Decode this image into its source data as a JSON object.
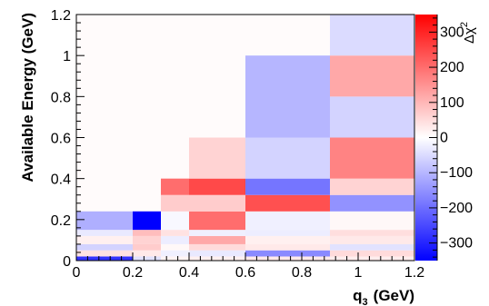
{
  "chart_data": {
    "type": "heatmap",
    "xlabel": "q",
    "xlabel_sub": "3",
    "xlabel_unit": "(GeV)",
    "ylabel": "Available Energy (GeV)",
    "zlabel": "Δχ",
    "zlabel_sup": "2",
    "xlim": [
      0,
      1.2
    ],
    "ylim": [
      0,
      1.2
    ],
    "zlim": [
      -350,
      350
    ],
    "x_ticks": [
      "0",
      "0.2",
      "0.4",
      "0.6",
      "0.8",
      "1",
      "1.2"
    ],
    "y_ticks": [
      "0",
      "0.2",
      "0.4",
      "0.6",
      "0.8",
      "1",
      "1.2"
    ],
    "z_ticks": [
      "−300",
      "−200",
      "−100",
      "0",
      "100",
      "200",
      "300"
    ],
    "colors": {
      "low": "#0000ff",
      "mid": "#ffffff",
      "high": "#ff0000",
      "empty": "#fffbfb"
    },
    "bins": [
      {
        "x": [
          0,
          0.2
        ],
        "y": [
          0,
          0.02
        ],
        "z": -280
      },
      {
        "x": [
          0,
          0.2
        ],
        "y": [
          0.02,
          0.05
        ],
        "z": 40
      },
      {
        "x": [
          0,
          0.2
        ],
        "y": [
          0.05,
          0.08
        ],
        "z": -60
      },
      {
        "x": [
          0,
          0.2
        ],
        "y": [
          0.08,
          0.12
        ],
        "z": 20
      },
      {
        "x": [
          0,
          0.2
        ],
        "y": [
          0.12,
          0.15
        ],
        "z": -30
      },
      {
        "x": [
          0,
          0.2
        ],
        "y": [
          0.15,
          0.24
        ],
        "z": -110
      },
      {
        "x": [
          0.2,
          0.3
        ],
        "y": [
          0,
          0.02
        ],
        "z": -40
      },
      {
        "x": [
          0.2,
          0.3
        ],
        "y": [
          0.02,
          0.05
        ],
        "z": 30
      },
      {
        "x": [
          0.2,
          0.3
        ],
        "y": [
          0.05,
          0.08
        ],
        "z": 70
      },
      {
        "x": [
          0.2,
          0.3
        ],
        "y": [
          0.08,
          0.12
        ],
        "z": 60
      },
      {
        "x": [
          0.2,
          0.3
        ],
        "y": [
          0.12,
          0.15
        ],
        "z": 90
      },
      {
        "x": [
          0.2,
          0.3
        ],
        "y": [
          0.15,
          0.24
        ],
        "z": -350
      },
      {
        "x": [
          0.3,
          0.4
        ],
        "y": [
          0,
          0.02
        ],
        "z": 15
      },
      {
        "x": [
          0.3,
          0.4
        ],
        "y": [
          0.02,
          0.05
        ],
        "z": -20
      },
      {
        "x": [
          0.3,
          0.4
        ],
        "y": [
          0.05,
          0.08
        ],
        "z": 10
      },
      {
        "x": [
          0.3,
          0.4
        ],
        "y": [
          0.08,
          0.12
        ],
        "z": -25
      },
      {
        "x": [
          0.3,
          0.4
        ],
        "y": [
          0.12,
          0.15
        ],
        "z": 40
      },
      {
        "x": [
          0.3,
          0.4
        ],
        "y": [
          0.15,
          0.24
        ],
        "z": -10
      },
      {
        "x": [
          0.3,
          0.4
        ],
        "y": [
          0.24,
          0.32
        ],
        "z": 70
      },
      {
        "x": [
          0.3,
          0.4
        ],
        "y": [
          0.32,
          0.4
        ],
        "z": 200
      },
      {
        "x": [
          0.4,
          0.6
        ],
        "y": [
          0,
          0.02
        ],
        "z": 20
      },
      {
        "x": [
          0.4,
          0.6
        ],
        "y": [
          0.02,
          0.05
        ],
        "z": -30
      },
      {
        "x": [
          0.4,
          0.6
        ],
        "y": [
          0.05,
          0.08
        ],
        "z": 50
      },
      {
        "x": [
          0.4,
          0.6
        ],
        "y": [
          0.08,
          0.12
        ],
        "z": 120
      },
      {
        "x": [
          0.4,
          0.6
        ],
        "y": [
          0.12,
          0.15
        ],
        "z": -20
      },
      {
        "x": [
          0.4,
          0.6
        ],
        "y": [
          0.15,
          0.24
        ],
        "z": 200
      },
      {
        "x": [
          0.4,
          0.6
        ],
        "y": [
          0.24,
          0.32
        ],
        "z": 70
      },
      {
        "x": [
          0.4,
          0.6
        ],
        "y": [
          0.32,
          0.4
        ],
        "z": 250
      },
      {
        "x": [
          0.4,
          0.6
        ],
        "y": [
          0.4,
          0.6
        ],
        "z": 60
      },
      {
        "x": [
          0.6,
          0.9
        ],
        "y": [
          0,
          0.02
        ],
        "z": 30
      },
      {
        "x": [
          0.6,
          0.9
        ],
        "y": [
          0.02,
          0.05
        ],
        "z": -160
      },
      {
        "x": [
          0.6,
          0.9
        ],
        "y": [
          0.05,
          0.08
        ],
        "z": 30
      },
      {
        "x": [
          0.6,
          0.9
        ],
        "y": [
          0.08,
          0.12
        ],
        "z": 20
      },
      {
        "x": [
          0.6,
          0.9
        ],
        "y": [
          0.12,
          0.15
        ],
        "z": -25
      },
      {
        "x": [
          0.6,
          0.9
        ],
        "y": [
          0.15,
          0.24
        ],
        "z": -20
      },
      {
        "x": [
          0.6,
          0.9
        ],
        "y": [
          0.24,
          0.32
        ],
        "z": 240
      },
      {
        "x": [
          0.6,
          0.9
        ],
        "y": [
          0.32,
          0.4
        ],
        "z": -190
      },
      {
        "x": [
          0.6,
          0.9
        ],
        "y": [
          0.4,
          0.6
        ],
        "z": -60
      },
      {
        "x": [
          0.6,
          0.9
        ],
        "y": [
          0.6,
          1.0
        ],
        "z": -100
      },
      {
        "x": [
          0.9,
          1.2
        ],
        "y": [
          0,
          0.02
        ],
        "z": 25
      },
      {
        "x": [
          0.9,
          1.2
        ],
        "y": [
          0.02,
          0.05
        ],
        "z": 50
      },
      {
        "x": [
          0.9,
          1.2
        ],
        "y": [
          0.05,
          0.08
        ],
        "z": -40
      },
      {
        "x": [
          0.9,
          1.2
        ],
        "y": [
          0.08,
          0.12
        ],
        "z": 30
      },
      {
        "x": [
          0.9,
          1.2
        ],
        "y": [
          0.12,
          0.15
        ],
        "z": 45
      },
      {
        "x": [
          0.9,
          1.2
        ],
        "y": [
          0.15,
          0.24
        ],
        "z": 10
      },
      {
        "x": [
          0.9,
          1.2
        ],
        "y": [
          0.24,
          0.32
        ],
        "z": -150
      },
      {
        "x": [
          0.9,
          1.2
        ],
        "y": [
          0.32,
          0.4
        ],
        "z": 60
      },
      {
        "x": [
          0.9,
          1.2
        ],
        "y": [
          0.4,
          0.6
        ],
        "z": 170
      },
      {
        "x": [
          0.9,
          1.2
        ],
        "y": [
          0.6,
          0.8
        ],
        "z": -60
      },
      {
        "x": [
          0.9,
          1.2
        ],
        "y": [
          0.8,
          1.0
        ],
        "z": 120
      },
      {
        "x": [
          0.9,
          1.2
        ],
        "y": [
          1.0,
          1.2
        ],
        "z": -50
      }
    ]
  }
}
